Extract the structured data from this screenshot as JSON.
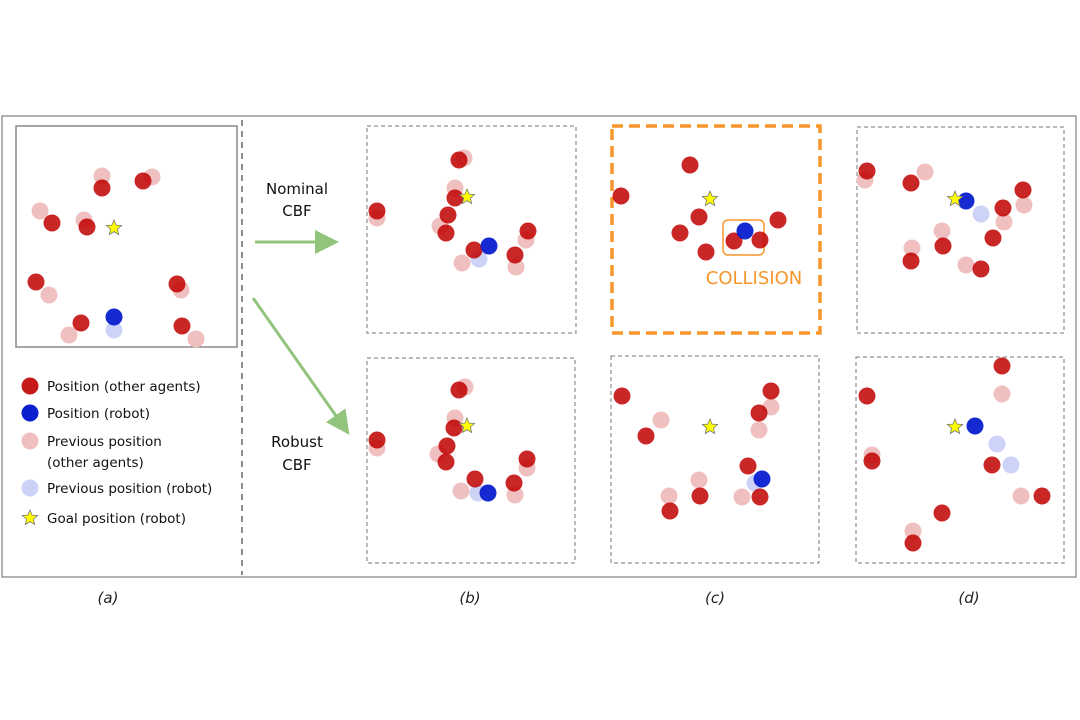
{
  "colors": {
    "other_agent": "#c00000",
    "other_agent_prev": "#f0c0c0",
    "robot": "#0a1fd0",
    "robot_prev": "#cdd3f7",
    "goal": "#ffff00",
    "arrow": "#93c47d",
    "collision": "#f7962b"
  },
  "methods": {
    "nominal": [
      "Nominal",
      "CBF"
    ],
    "robust": [
      "Robust",
      "CBF"
    ]
  },
  "collision_label": "COLLISION",
  "legend": [
    {
      "icon": "red-dot",
      "text": [
        "Position (other agents)"
      ]
    },
    {
      "icon": "blue-dot",
      "text": [
        "Position (robot)"
      ]
    },
    {
      "icon": "pink-dot",
      "text": [
        "Previous position",
        "(other agents)"
      ]
    },
    {
      "icon": "light-blue-dot",
      "text": [
        "Previous position (robot)"
      ]
    },
    {
      "icon": "star",
      "text": [
        "Goal position (robot)"
      ]
    }
  ],
  "captions": [
    "(a)",
    "(b)",
    "(c)",
    "(d)"
  ]
}
